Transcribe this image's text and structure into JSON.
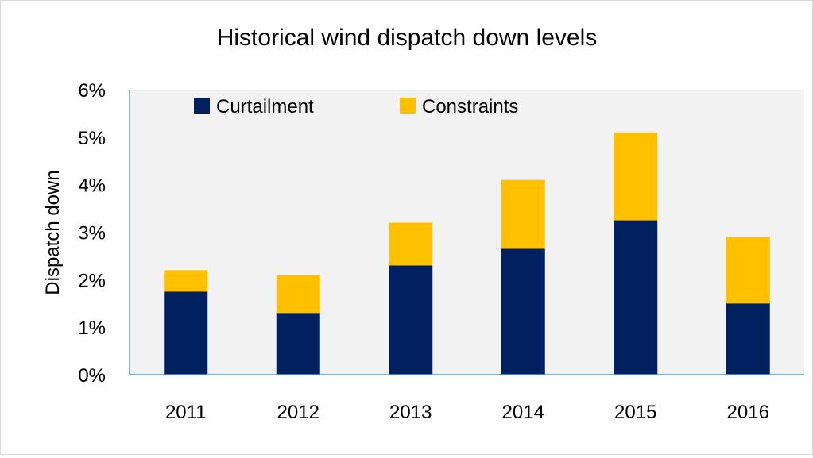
{
  "chart_data": {
    "type": "bar",
    "stacked": true,
    "title": "Historical wind dispatch down levels",
    "xlabel": "",
    "ylabel": "Dispatch down",
    "categories": [
      "2011",
      "2012",
      "2013",
      "2014",
      "2015",
      "2016"
    ],
    "series": [
      {
        "name": "Curtailment",
        "color": "#002060",
        "values": [
          1.75,
          1.3,
          2.3,
          2.65,
          3.25,
          1.5
        ]
      },
      {
        "name": "Constraints",
        "color": "#FFC000",
        "values": [
          0.45,
          0.8,
          0.9,
          1.45,
          1.85,
          1.4
        ]
      }
    ],
    "ylim": [
      0,
      6
    ],
    "yticks": [
      "0%",
      "1%",
      "2%",
      "3%",
      "4%",
      "5%",
      "6%"
    ],
    "y_unit": "%",
    "grid": false,
    "plot_background": "#F2F2F2",
    "axis_color": "#5B9BD5",
    "legend_position": "top-left"
  }
}
